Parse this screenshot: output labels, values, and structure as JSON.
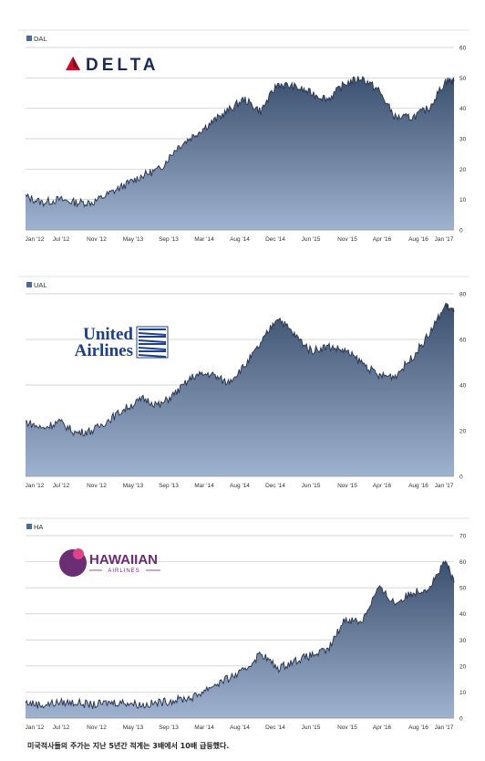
{
  "caption": "미국적사들의 주가는 지난 5년간 적게는 3배에서 10배 급등했다.",
  "colors": {
    "fill_top": "#3b4f6e",
    "fill_bottom": "#9fb2cf",
    "grid": "#c8c8c8",
    "legend": "#4a6a9a",
    "delta_red": "#c8102e",
    "united_blue": "#1e3f8a",
    "hawaiian_purple": "#6b2d73"
  },
  "chart_data": [
    {
      "type": "area",
      "legend": "DAL",
      "logo_text": "DELTA",
      "ylim": [
        0,
        60
      ],
      "yticks": [
        0,
        10,
        20,
        30,
        40,
        50,
        60
      ],
      "xtick_labels": [
        "Jan '12",
        "Jul '12",
        "Nov '12",
        "May '13",
        "Sep '13",
        "Mar '14",
        "Aug '14",
        "Dec '14",
        "Jun '15",
        "Nov '15",
        "Apr '16",
        "Aug '16",
        "Jan '17"
      ],
      "x": [
        2012.0,
        2012.2,
        2012.4,
        2012.6,
        2012.8,
        2013.0,
        2013.2,
        2013.4,
        2013.6,
        2013.8,
        2014.0,
        2014.2,
        2014.4,
        2014.6,
        2014.8,
        2015.0,
        2015.2,
        2015.4,
        2015.6,
        2015.8,
        2016.0,
        2016.2,
        2016.4,
        2016.6,
        2016.8,
        2017.0,
        2017.1
      ],
      "values": [
        11,
        9,
        10,
        9,
        9,
        12,
        15,
        18,
        20,
        27,
        31,
        35,
        39,
        43,
        39,
        48,
        47,
        45,
        43,
        48,
        50,
        46,
        37,
        37,
        40,
        49,
        49
      ]
    },
    {
      "type": "area",
      "legend": "UAL",
      "logo_text": [
        "United",
        "Airlines"
      ],
      "ylim": [
        0,
        80
      ],
      "yticks": [
        0,
        20,
        40,
        60,
        80
      ],
      "xtick_labels": [
        "Jan '12",
        "Jul '12",
        "Nov '12",
        "May '13",
        "Sep '13",
        "Mar '14",
        "Aug '14",
        "Dec '14",
        "Jun '15",
        "Nov '15",
        "Apr '16",
        "Aug '16",
        "Jan '17"
      ],
      "x": [
        2012.0,
        2012.2,
        2012.4,
        2012.6,
        2012.8,
        2013.0,
        2013.2,
        2013.4,
        2013.6,
        2013.8,
        2014.0,
        2014.2,
        2014.4,
        2014.6,
        2014.8,
        2015.0,
        2015.2,
        2015.4,
        2015.6,
        2015.8,
        2016.0,
        2016.2,
        2016.4,
        2016.6,
        2016.8,
        2017.0,
        2017.1
      ],
      "values": [
        24,
        21,
        24,
        19,
        20,
        25,
        30,
        34,
        31,
        37,
        44,
        45,
        41,
        48,
        58,
        70,
        62,
        55,
        57,
        55,
        50,
        44,
        44,
        52,
        62,
        75,
        72
      ]
    },
    {
      "type": "area",
      "legend": "HA",
      "logo_text": [
        "HAWAIIAN",
        "AIRLINES"
      ],
      "ylim": [
        0,
        70
      ],
      "yticks": [
        0,
        10,
        20,
        30,
        40,
        50,
        60,
        70
      ],
      "xtick_labels": [
        "Jan '12",
        "Jul '12",
        "Nov '12",
        "May '13",
        "Sep '13",
        "Mar '14",
        "Aug '14",
        "Dec '14",
        "Jun '15",
        "Nov '15",
        "Apr '16",
        "Aug '16",
        "Jan '17"
      ],
      "x": [
        2012.0,
        2012.2,
        2012.4,
        2012.6,
        2012.8,
        2013.0,
        2013.2,
        2013.4,
        2013.6,
        2013.8,
        2014.0,
        2014.2,
        2014.4,
        2014.6,
        2014.8,
        2015.0,
        2015.2,
        2015.4,
        2015.6,
        2015.8,
        2016.0,
        2016.2,
        2016.4,
        2016.6,
        2016.8,
        2017.0,
        2017.1
      ],
      "values": [
        6,
        5,
        6,
        6,
        5,
        6,
        6,
        5,
        6,
        7,
        8,
        12,
        15,
        18,
        25,
        19,
        22,
        24,
        26,
        38,
        37,
        50,
        44,
        48,
        50,
        60,
        52
      ]
    }
  ]
}
